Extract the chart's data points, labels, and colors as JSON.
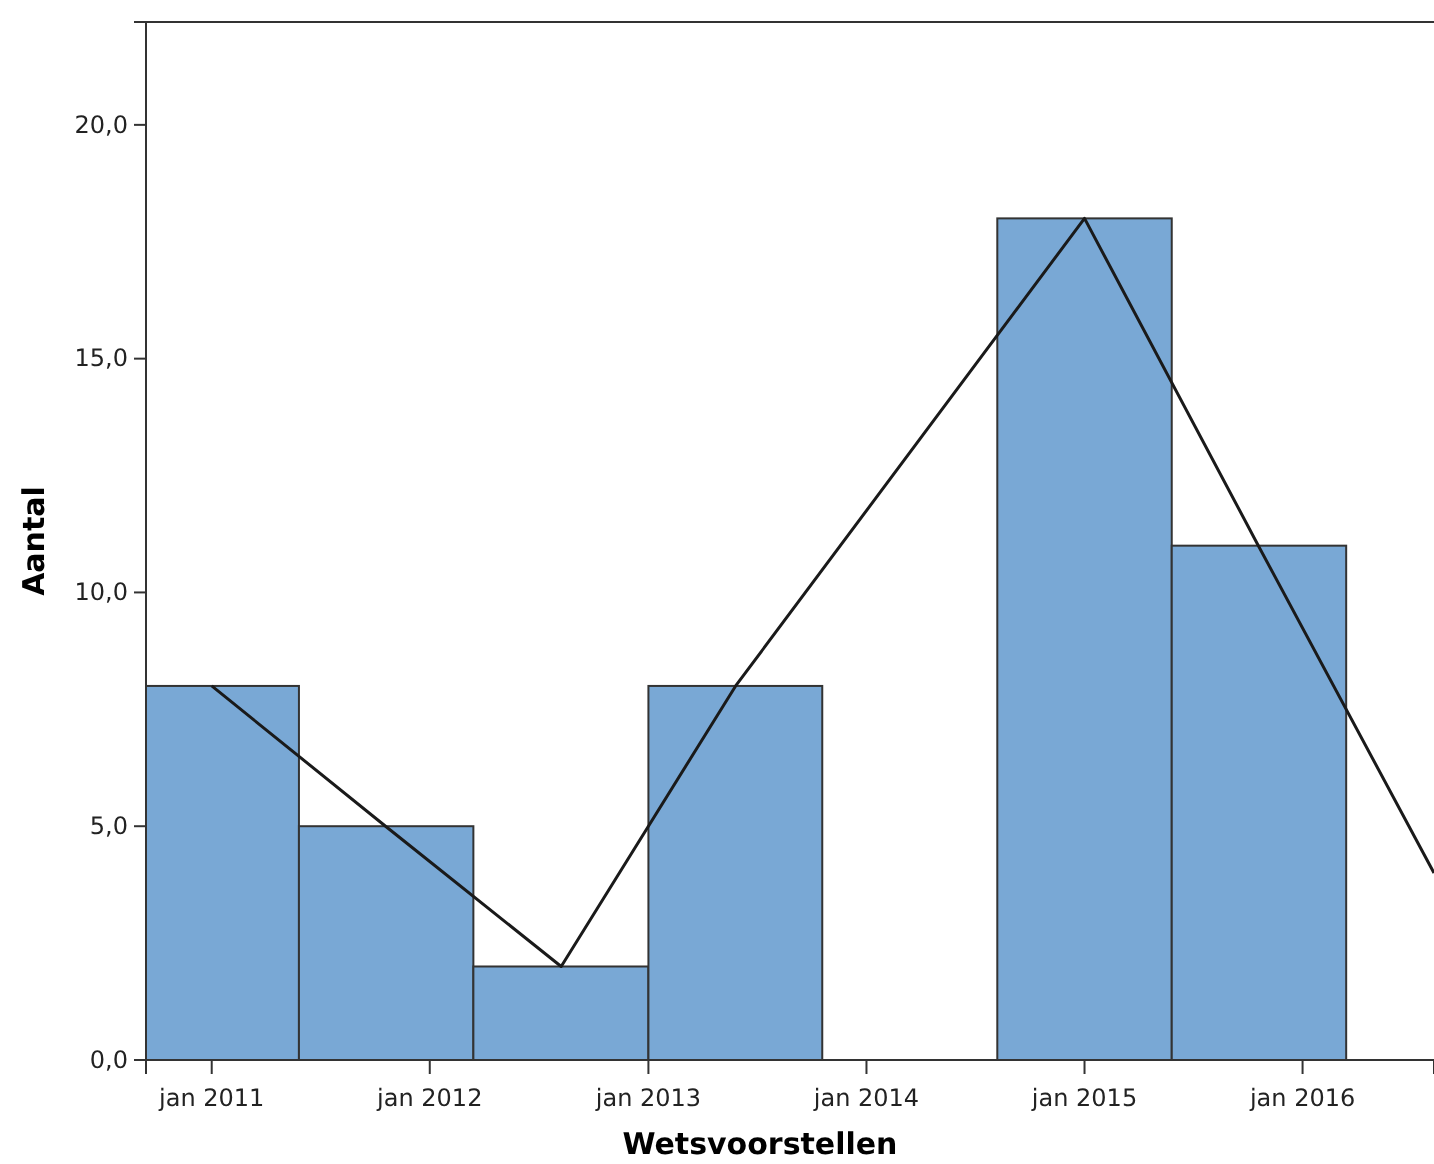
{
  "chart_data": {
    "type": "histogram",
    "xlabel": "Wetsvoorstellen",
    "ylabel": "Aantal",
    "bins": [
      "2010-09-13",
      "2011-05-27",
      "2012-03-14",
      "2013-01-01",
      "2013-10-19",
      "2014-08-08",
      "2015-05-27",
      "2016-03-14"
    ],
    "values": [
      8,
      5,
      2,
      8,
      0,
      18,
      11
    ],
    "color": "#79a8d5",
    "series": [
      {
        "type": "line",
        "color": "#1a1a1a",
        "x": [
          "2011-01-01",
          "2011-10-19",
          "2012-08-08",
          "2013-05-27",
          "2015-01-01",
          "2015-10-19",
          "2016-08-08"
        ],
        "values": [
          8,
          5,
          2,
          8,
          18,
          11,
          4
        ]
      }
    ],
    "xlim": [
      "2010-09-13",
      "2016-08-08"
    ],
    "ylim": [
      0,
      22.2
    ],
    "xticks": [
      {
        "value": "2011-01",
        "label": "jan 2011"
      },
      {
        "value": "2012-01",
        "label": "jan 2012"
      },
      {
        "value": "2013-01",
        "label": "jan 2013"
      },
      {
        "value": "2014-01",
        "label": "jan 2014"
      },
      {
        "value": "2015-01",
        "label": "jan 2015"
      },
      {
        "value": "2016-01",
        "label": "jan 2016"
      }
    ],
    "yticks": [
      {
        "value": 0,
        "label": "0,0"
      },
      {
        "value": 5,
        "label": "5,0"
      },
      {
        "value": 10,
        "label": "10,0"
      },
      {
        "value": 15,
        "label": "15,0"
      },
      {
        "value": 20,
        "label": "20,0"
      }
    ],
    "marker": "none",
    "line_style": "solid",
    "grid": false
  }
}
